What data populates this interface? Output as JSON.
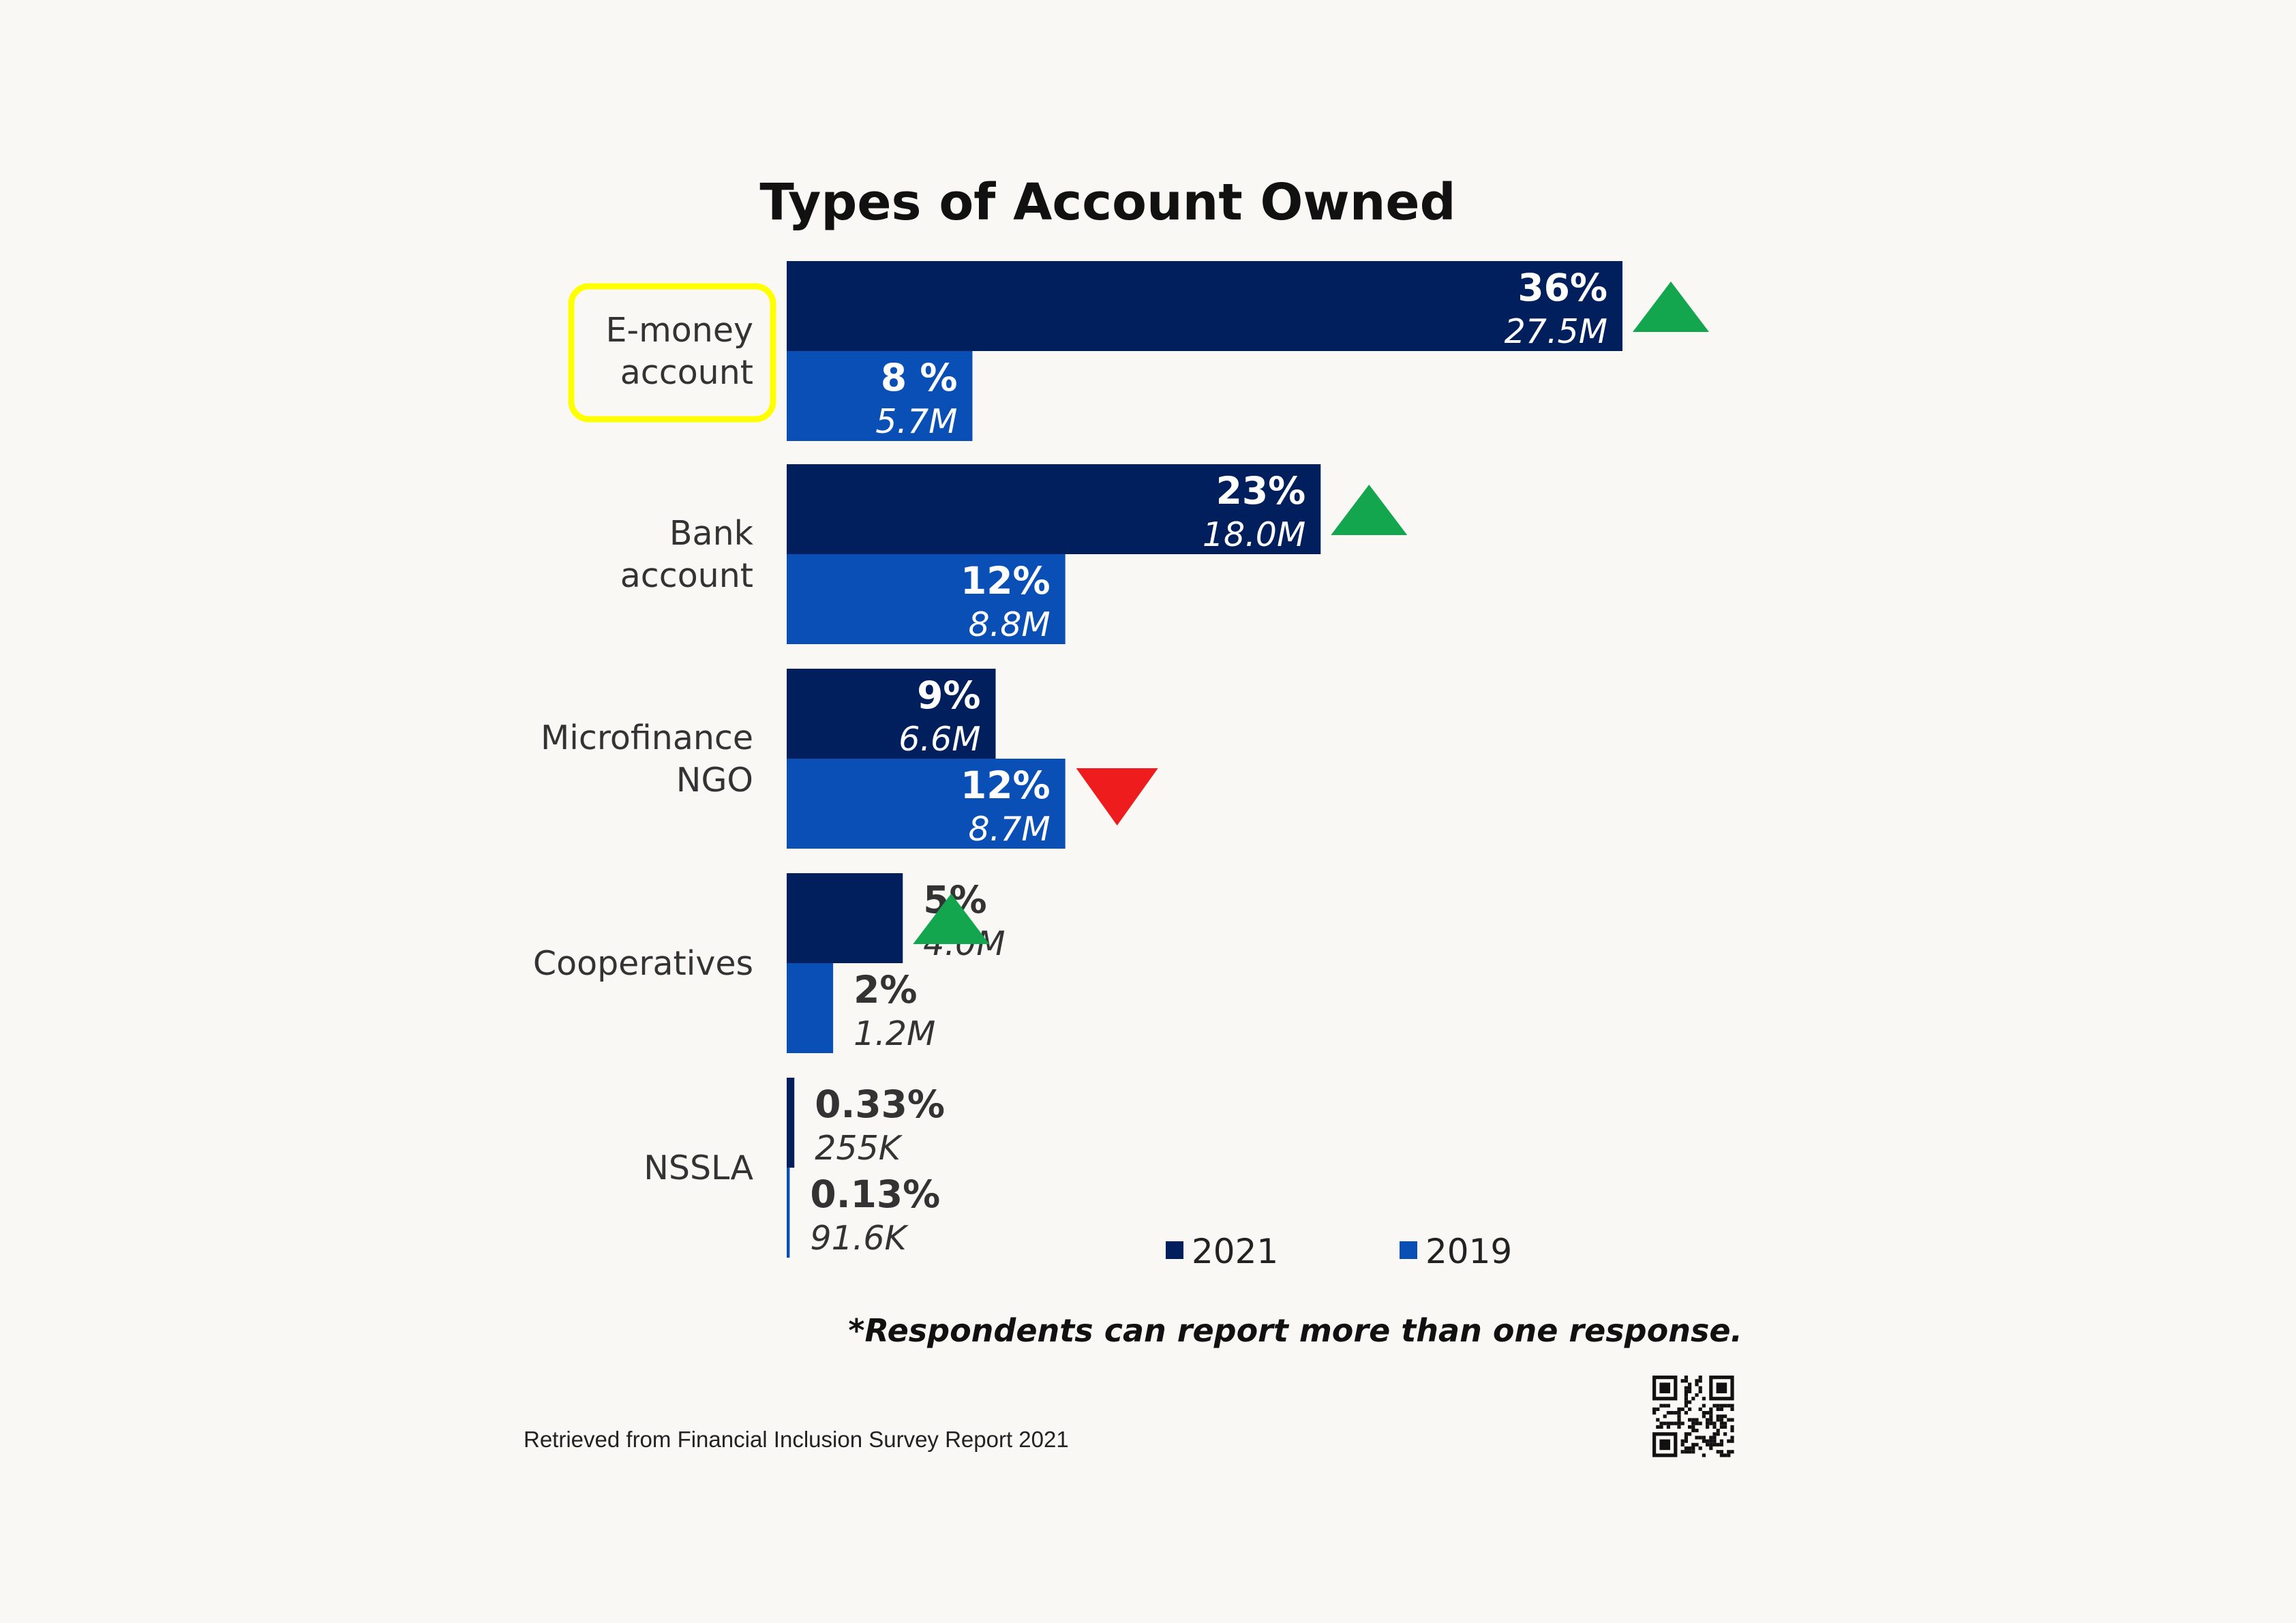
{
  "chart_data": {
    "type": "bar",
    "orientation": "horizontal",
    "title": "Types of Account Owned",
    "categories": [
      [
        "E-money",
        "account"
      ],
      [
        "Bank",
        "account"
      ],
      [
        "Microfinance",
        "NGO"
      ],
      [
        "Cooperatives"
      ],
      [
        "NSSLA"
      ]
    ],
    "series": [
      {
        "name": "2021",
        "color": "#001f5c",
        "values": [
          36,
          23,
          9,
          5,
          0.33
        ],
        "value_labels": [
          "36%",
          "23%",
          "9%",
          "5%",
          "0.33%"
        ],
        "count_labels": [
          "27.5M",
          "18.0M",
          "6.6M",
          "4.0M",
          "255K"
        ]
      },
      {
        "name": "2019",
        "color": "#0a4fb5",
        "values": [
          8,
          12,
          12,
          2,
          0.13
        ],
        "value_labels": [
          "8 %",
          "12%",
          "12%",
          "2%",
          "0.13%"
        ],
        "count_labels": [
          "5.7M",
          "8.8M",
          "8.7M",
          "1.2M",
          "91.6K"
        ]
      }
    ],
    "trend": [
      "up",
      "up",
      "down",
      "up",
      "none"
    ],
    "trend_colors": {
      "up": "#13a64f",
      "down": "#ee1c1c"
    },
    "highlighted_category": "E-money account",
    "highlight_color": "#ffff00",
    "xlim": [
      0,
      36
    ],
    "grid": false,
    "legend": "bottom-right"
  },
  "footnote": "*Respondents can report more than one response.",
  "source": "Retrieved from Financial Inclusion Survey Report 2021",
  "qr_icon": "qr-code-icon"
}
